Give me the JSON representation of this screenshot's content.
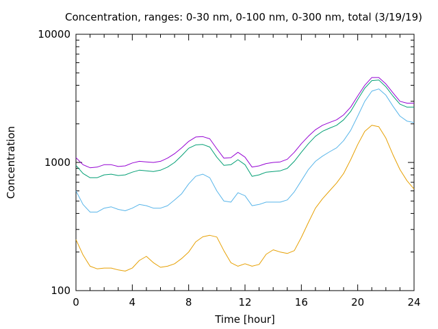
{
  "chart_data": {
    "type": "line",
    "title": "Concentration, ranges: 0-30 nm, 0-100 nm, 0-300 nm, total (3/19/19)",
    "xlabel": "Time [hour]",
    "ylabel": "Concentration",
    "xlim": [
      0,
      24
    ],
    "ylim": [
      100,
      10000
    ],
    "yscale": "log",
    "x_ticks": [
      "0",
      "4",
      "8",
      "12",
      "16",
      "20",
      "24"
    ],
    "y_ticks": [
      "100",
      "1000",
      "10000"
    ],
    "grid": false,
    "x": [
      0,
      0.5,
      1,
      1.5,
      2,
      2.5,
      3,
      3.5,
      4,
      4.5,
      5,
      5.5,
      6,
      6.5,
      7,
      7.5,
      8,
      8.5,
      9,
      9.5,
      10,
      10.5,
      11,
      11.5,
      12,
      12.5,
      13,
      13.5,
      14,
      14.5,
      15,
      15.5,
      16,
      16.5,
      17,
      17.5,
      18,
      18.5,
      19,
      19.5,
      20,
      20.5,
      21,
      21.5,
      22,
      22.5,
      23,
      23.5,
      24
    ],
    "series": [
      {
        "color": "#9400d3",
        "values": [
          1090,
          960,
          910,
          920,
          960,
          960,
          930,
          940,
          990,
          1020,
          1010,
          1000,
          1020,
          1080,
          1170,
          1300,
          1460,
          1580,
          1590,
          1530,
          1280,
          1080,
          1090,
          1200,
          1100,
          920,
          940,
          980,
          1000,
          1010,
          1060,
          1200,
          1400,
          1600,
          1800,
          1950,
          2050,
          2150,
          2350,
          2700,
          3300,
          4000,
          4600,
          4600,
          4100,
          3500,
          3000,
          2900,
          2900
        ]
      },
      {
        "color": "#009e73",
        "values": [
          950,
          820,
          760,
          760,
          800,
          810,
          790,
          800,
          840,
          870,
          860,
          850,
          870,
          920,
          1000,
          1130,
          1290,
          1370,
          1380,
          1320,
          1100,
          950,
          960,
          1050,
          960,
          780,
          800,
          840,
          850,
          860,
          900,
          1020,
          1200,
          1400,
          1600,
          1750,
          1850,
          1950,
          2150,
          2500,
          3100,
          3800,
          4350,
          4400,
          3900,
          3300,
          2850,
          2700,
          2700
        ]
      },
      {
        "color": "#56b4e9",
        "values": [
          600,
          470,
          410,
          410,
          440,
          450,
          430,
          420,
          440,
          470,
          460,
          440,
          440,
          460,
          510,
          570,
          680,
          780,
          810,
          760,
          600,
          500,
          490,
          580,
          550,
          460,
          470,
          490,
          490,
          490,
          510,
          590,
          720,
          880,
          1020,
          1120,
          1210,
          1300,
          1480,
          1780,
          2300,
          3000,
          3600,
          3750,
          3350,
          2750,
          2300,
          2100,
          2050
        ]
      },
      {
        "color": "#e69f00",
        "values": [
          250,
          190,
          155,
          148,
          150,
          150,
          145,
          142,
          150,
          172,
          185,
          165,
          152,
          155,
          162,
          178,
          200,
          240,
          263,
          270,
          262,
          205,
          165,
          155,
          162,
          155,
          160,
          192,
          208,
          200,
          195,
          205,
          260,
          340,
          440,
          520,
          600,
          690,
          820,
          1050,
          1380,
          1750,
          1950,
          1900,
          1550,
          1150,
          880,
          720,
          620
        ]
      }
    ]
  }
}
